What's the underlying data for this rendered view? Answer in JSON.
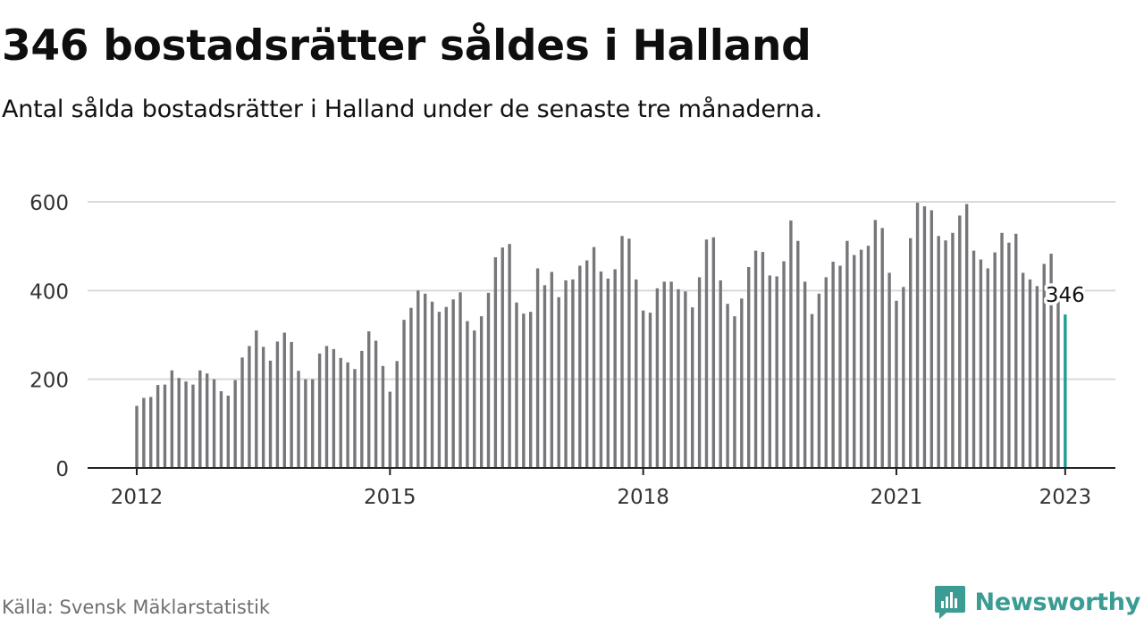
{
  "header": {
    "title": "346 bostadsrätter såldes i Halland",
    "subtitle": "Antal sålda bostadsrätter i Halland under de senaste tre månaderna."
  },
  "footer": {
    "source": "Källa: Svensk Mäklarstatistik",
    "brand": "Newsworthy",
    "brand_icon": "newsworthy-logo-icon"
  },
  "colors": {
    "bar": "#77777b",
    "highlight": "#1f9e94",
    "grid": "#d9d9d9",
    "axis": "#222222",
    "brand": "#3a9c93"
  },
  "chart_data": {
    "type": "bar",
    "grid": true,
    "y_ticks": [
      0,
      200,
      400,
      600
    ],
    "x_ticks": [
      "2012",
      "2015",
      "2018",
      "2021",
      "2023"
    ],
    "ylim": [
      0,
      640
    ],
    "start": "2012-01",
    "end": "2023-01",
    "highlight_label": "346",
    "values": [
      140,
      158,
      160,
      187,
      188,
      220,
      203,
      195,
      188,
      220,
      213,
      200,
      173,
      163,
      198,
      249,
      275,
      310,
      273,
      242,
      285,
      305,
      284,
      219,
      200,
      200,
      258,
      275,
      268,
      248,
      238,
      223,
      264,
      308,
      287,
      230,
      172,
      241,
      334,
      361,
      400,
      393,
      375,
      352,
      363,
      380,
      396,
      331,
      310,
      342,
      395,
      475,
      497,
      505,
      373,
      348,
      352,
      450,
      412,
      442,
      385,
      423,
      425,
      456,
      468,
      498,
      443,
      427,
      448,
      523,
      517,
      425,
      355,
      350,
      405,
      420,
      420,
      403,
      398,
      362,
      430,
      515,
      520,
      423,
      370,
      342,
      382,
      453,
      490,
      487,
      434,
      432,
      466,
      558,
      512,
      420,
      347,
      393,
      430,
      465,
      456,
      512,
      480,
      492,
      501,
      559,
      541,
      440,
      377,
      408,
      518,
      598,
      590,
      581,
      523,
      513,
      530,
      569,
      595,
      490,
      470,
      450,
      486,
      530,
      508,
      528,
      440,
      425,
      410,
      460,
      483,
      398,
      346
    ]
  }
}
